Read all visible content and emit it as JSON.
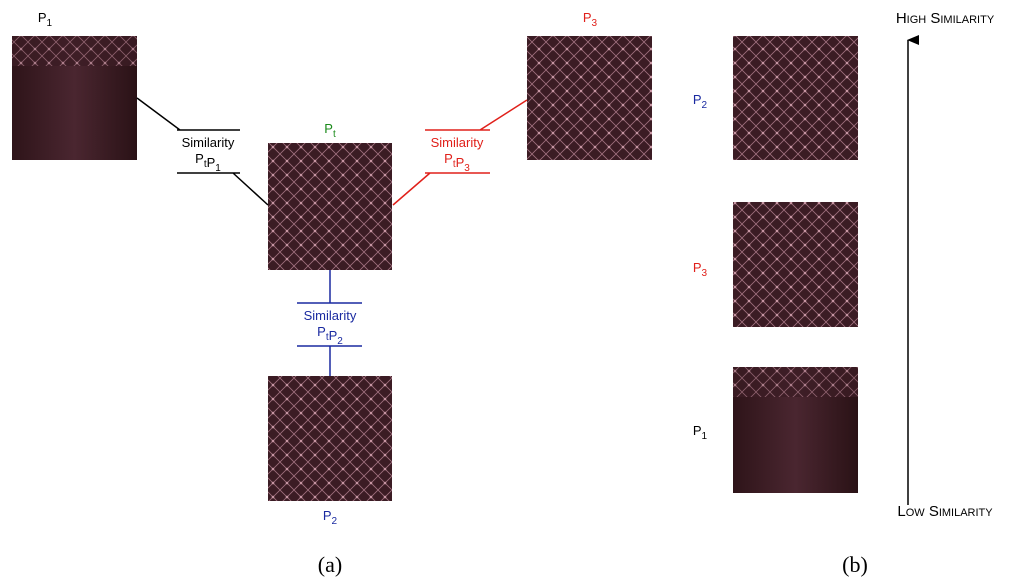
{
  "panel_a": {
    "nodes": [
      {
        "letter": "P",
        "subscript": "1"
      },
      {
        "letter": "P",
        "subscript": "3"
      },
      {
        "letter": "P",
        "subscript": "t"
      },
      {
        "letter": "P",
        "subscript": "2"
      }
    ],
    "similarities": [
      {
        "title": "Similarity",
        "pair": [
          {
            "letter": "P",
            "subscript": "t"
          },
          {
            "letter": "P",
            "subscript": "1"
          }
        ]
      },
      {
        "title": "Similarity",
        "pair": [
          {
            "letter": "P",
            "subscript": "t"
          },
          {
            "letter": "P",
            "subscript": "3"
          }
        ]
      },
      {
        "title": "Similarity",
        "pair": [
          {
            "letter": "P",
            "subscript": "t"
          },
          {
            "letter": "P",
            "subscript": "2"
          }
        ]
      }
    ]
  },
  "panel_b": {
    "ranked": [
      {
        "letter": "P",
        "subscript": "2"
      },
      {
        "letter": "P",
        "subscript": "3"
      },
      {
        "letter": "P",
        "subscript": "1"
      }
    ],
    "high_label": "High Similarity",
    "low_label": "Low Similarity"
  },
  "captions": [
    "(a)",
    "(b)"
  ]
}
